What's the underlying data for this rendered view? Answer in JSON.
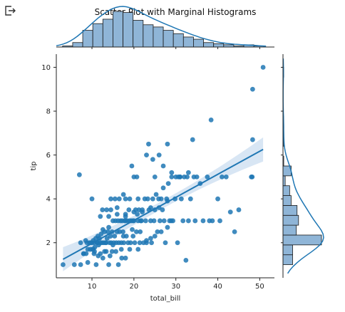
{
  "toolbar": {
    "export_icon": "export-icon"
  },
  "chart_data": {
    "type": "scatter",
    "title": "Scatter Plot with Marginal Histograms",
    "xlabel": "total_bill",
    "ylabel": "tip",
    "xlim": [
      1.5,
      53.5
    ],
    "ylim": [
      0.4,
      10.6
    ],
    "x_ticks": [
      10,
      20,
      30,
      40,
      50
    ],
    "y_ticks": [
      2,
      4,
      6,
      8,
      10
    ],
    "colors": {
      "points": "#1f77b4",
      "hist_fill": "#8fb5d7",
      "hist_edge": "#1a1a1a",
      "band": "#c8dbef"
    },
    "regression": {
      "slope": 0.105,
      "intercept": 0.92,
      "band_halfwidth_center": 0.18,
      "band_halfwidth_edge": 0.55
    },
    "points": [
      [
        3.1,
        1.0
      ],
      [
        5.8,
        1.0
      ],
      [
        7.3,
        1.0
      ],
      [
        8.6,
        1.5
      ],
      [
        9.6,
        1.7
      ],
      [
        10.1,
        1.7
      ],
      [
        10.3,
        1.7
      ],
      [
        10.6,
        1.6
      ],
      [
        11.0,
        1.0
      ],
      [
        11.4,
        2.0
      ],
      [
        12.0,
        1.5
      ],
      [
        12.6,
        1.3
      ],
      [
        13.4,
        1.6
      ],
      [
        14.0,
        1.0
      ],
      [
        14.3,
        1.4
      ],
      [
        14.8,
        1.6
      ],
      [
        15.7,
        1.6
      ],
      [
        16.3,
        1.0
      ],
      [
        17.1,
        1.3
      ],
      [
        18.0,
        1.3
      ],
      [
        7.0,
        5.1
      ],
      [
        7.3,
        2.0
      ],
      [
        8.0,
        1.5
      ],
      [
        8.5,
        2.1
      ],
      [
        8.8,
        2.0
      ],
      [
        9.0,
        1.7
      ],
      [
        9.4,
        2.0
      ],
      [
        9.7,
        2.0
      ],
      [
        10.0,
        2.0
      ],
      [
        10.3,
        2.1
      ],
      [
        10.5,
        2.0
      ],
      [
        10.7,
        1.8
      ],
      [
        10.9,
        2.2
      ],
      [
        11.2,
        2.0
      ],
      [
        11.4,
        2.3
      ],
      [
        11.6,
        1.9
      ],
      [
        11.8,
        2.2
      ],
      [
        12.0,
        2.0
      ],
      [
        12.2,
        2.4
      ],
      [
        12.4,
        2.0
      ],
      [
        12.6,
        2.6
      ],
      [
        12.8,
        2.0
      ],
      [
        13.0,
        2.5
      ],
      [
        13.2,
        2.0
      ],
      [
        13.4,
        2.0
      ],
      [
        13.6,
        2.2
      ],
      [
        13.8,
        2.5
      ],
      [
        14.0,
        2.7
      ],
      [
        14.2,
        2.0
      ],
      [
        14.4,
        2.3
      ],
      [
        14.6,
        2.0
      ],
      [
        14.8,
        2.5
      ],
      [
        15.0,
        3.0
      ],
      [
        15.2,
        2.0
      ],
      [
        15.4,
        2.3
      ],
      [
        15.6,
        3.0
      ],
      [
        15.8,
        2.0
      ],
      [
        16.0,
        2.5
      ],
      [
        16.2,
        3.0
      ],
      [
        16.4,
        2.0
      ],
      [
        16.6,
        2.5
      ],
      [
        16.8,
        3.0
      ],
      [
        17.0,
        2.0
      ],
      [
        17.2,
        3.0
      ],
      [
        17.4,
        2.5
      ],
      [
        17.6,
        2.0
      ],
      [
        17.8,
        3.0
      ],
      [
        18.0,
        3.0
      ],
      [
        18.2,
        2.3
      ],
      [
        18.4,
        3.0
      ],
      [
        18.6,
        2.0
      ],
      [
        18.8,
        3.5
      ],
      [
        19.0,
        3.0
      ],
      [
        19.2,
        2.0
      ],
      [
        19.4,
        3.0
      ],
      [
        19.6,
        2.6
      ],
      [
        19.8,
        3.0
      ],
      [
        20.0,
        3.0
      ],
      [
        20.2,
        2.0
      ],
      [
        20.4,
        3.5
      ],
      [
        20.6,
        2.5
      ],
      [
        20.8,
        3.3
      ],
      [
        21.0,
        3.0
      ],
      [
        21.2,
        3.5
      ],
      [
        21.4,
        2.0
      ],
      [
        21.6,
        3.0
      ],
      [
        21.8,
        3.0
      ],
      [
        22.0,
        3.5
      ],
      [
        22.3,
        2.0
      ],
      [
        22.6,
        4.0
      ],
      [
        22.8,
        3.0
      ],
      [
        23.0,
        2.0
      ],
      [
        23.3,
        4.0
      ],
      [
        23.6,
        3.5
      ],
      [
        24.0,
        3.0
      ],
      [
        24.2,
        2.0
      ],
      [
        24.5,
        4.0
      ],
      [
        24.8,
        3.0
      ],
      [
        25.0,
        3.5
      ],
      [
        25.3,
        4.2
      ],
      [
        25.6,
        2.5
      ],
      [
        25.9,
        4.0
      ],
      [
        26.2,
        3.0
      ],
      [
        26.5,
        4.0
      ],
      [
        26.8,
        3.5
      ],
      [
        27.0,
        4.5
      ],
      [
        27.2,
        3.0
      ],
      [
        27.5,
        2.0
      ],
      [
        27.8,
        4.0
      ],
      [
        28.0,
        2.7
      ],
      [
        28.2,
        4.7
      ],
      [
        28.5,
        3.0
      ],
      [
        28.9,
        3.0
      ],
      [
        29.0,
        5.0
      ],
      [
        29.3,
        3.0
      ],
      [
        29.8,
        4.0
      ],
      [
        30.0,
        5.0
      ],
      [
        30.4,
        2.0
      ],
      [
        30.6,
        5.0
      ],
      [
        31.0,
        5.0
      ],
      [
        31.3,
        4.0
      ],
      [
        31.7,
        3.0
      ],
      [
        32.0,
        5.0
      ],
      [
        32.4,
        1.2
      ],
      [
        32.7,
        5.0
      ],
      [
        33.0,
        3.0
      ],
      [
        33.5,
        4.0
      ],
      [
        34.0,
        6.7
      ],
      [
        34.3,
        5.0
      ],
      [
        34.6,
        3.0
      ],
      [
        35.0,
        5.0
      ],
      [
        35.8,
        4.7
      ],
      [
        36.5,
        3.0
      ],
      [
        37.5,
        5.0
      ],
      [
        38.0,
        3.0
      ],
      [
        38.4,
        7.6
      ],
      [
        38.7,
        3.0
      ],
      [
        40.0,
        4.0
      ],
      [
        40.5,
        3.0
      ],
      [
        41.0,
        5.0
      ],
      [
        42.0,
        5.0
      ],
      [
        43.0,
        3.4
      ],
      [
        44.0,
        2.5
      ],
      [
        45.0,
        3.5
      ],
      [
        48.2,
        5.0
      ],
      [
        48.3,
        6.7
      ],
      [
        48.3,
        9.0
      ],
      [
        50.8,
        10.0
      ],
      [
        48.0,
        5.0
      ],
      [
        24.0,
        2.2
      ],
      [
        20.7,
        5.0
      ],
      [
        21.0,
        4.0
      ],
      [
        19.0,
        4.0
      ],
      [
        18.0,
        4.0
      ],
      [
        17.5,
        4.2
      ],
      [
        16.5,
        4.0
      ],
      [
        15.5,
        4.0
      ],
      [
        14.5,
        4.0
      ],
      [
        13.5,
        3.5
      ],
      [
        12.5,
        3.5
      ],
      [
        10.0,
        4.0
      ],
      [
        12.0,
        3.2
      ],
      [
        14.0,
        3.2
      ],
      [
        16.0,
        3.3
      ],
      [
        18.0,
        3.3
      ],
      [
        20.0,
        3.4
      ],
      [
        22.0,
        3.4
      ],
      [
        24.0,
        3.6
      ],
      [
        26.0,
        3.6
      ],
      [
        28.0,
        3.9
      ],
      [
        23.0,
        6.0
      ],
      [
        24.5,
        5.8
      ],
      [
        26.0,
        6.0
      ],
      [
        28.0,
        6.5
      ],
      [
        23.5,
        6.5
      ],
      [
        25.0,
        5.0
      ],
      [
        27.0,
        5.5
      ],
      [
        29.0,
        5.2
      ],
      [
        31.0,
        5.0
      ],
      [
        33.0,
        5.2
      ],
      [
        20.0,
        5.0
      ],
      [
        19.5,
        5.5
      ],
      [
        18.0,
        3.2
      ],
      [
        16.0,
        3.6
      ],
      [
        14.5,
        3.5
      ],
      [
        13.0,
        1.6
      ],
      [
        11.5,
        1.4
      ],
      [
        10.5,
        1.5
      ],
      [
        9.0,
        1.1
      ],
      [
        8.0,
        1.5
      ],
      [
        15.0,
        1.9
      ],
      [
        17.0,
        1.7
      ],
      [
        19.0,
        1.7
      ],
      [
        21.0,
        1.7
      ],
      [
        23.0,
        2.1
      ],
      [
        25.0,
        2.3
      ],
      [
        26.5,
        2.5
      ],
      [
        21.5,
        2.5
      ],
      [
        19.8,
        2.3
      ],
      [
        17.5,
        2.3
      ]
    ],
    "top_hist": {
      "bin_edges": [
        3,
        5.4,
        7.8,
        10.2,
        12.6,
        15.0,
        17.4,
        19.8,
        22.2,
        24.6,
        27.0,
        29.4,
        31.8,
        34.2,
        36.6,
        39.0,
        41.4,
        43.8,
        46.2,
        48.6,
        51.0
      ],
      "counts": [
        1,
        4,
        15,
        21,
        25,
        32,
        31,
        24,
        20,
        18,
        15,
        12,
        9,
        7,
        4,
        3,
        2,
        1,
        2,
        1
      ]
    },
    "right_hist": {
      "bin_edges": [
        1.0,
        1.45,
        1.9,
        2.35,
        2.8,
        3.25,
        3.7,
        4.15,
        4.6,
        5.05,
        5.5,
        5.95,
        6.4,
        6.85,
        7.3,
        7.75,
        8.2,
        8.65,
        9.1,
        9.55,
        10.0
      ],
      "counts": [
        13,
        13,
        52,
        18,
        21,
        19,
        11,
        9,
        3,
        11,
        1,
        0,
        1,
        0,
        1,
        0,
        0,
        0,
        0,
        1
      ]
    }
  }
}
